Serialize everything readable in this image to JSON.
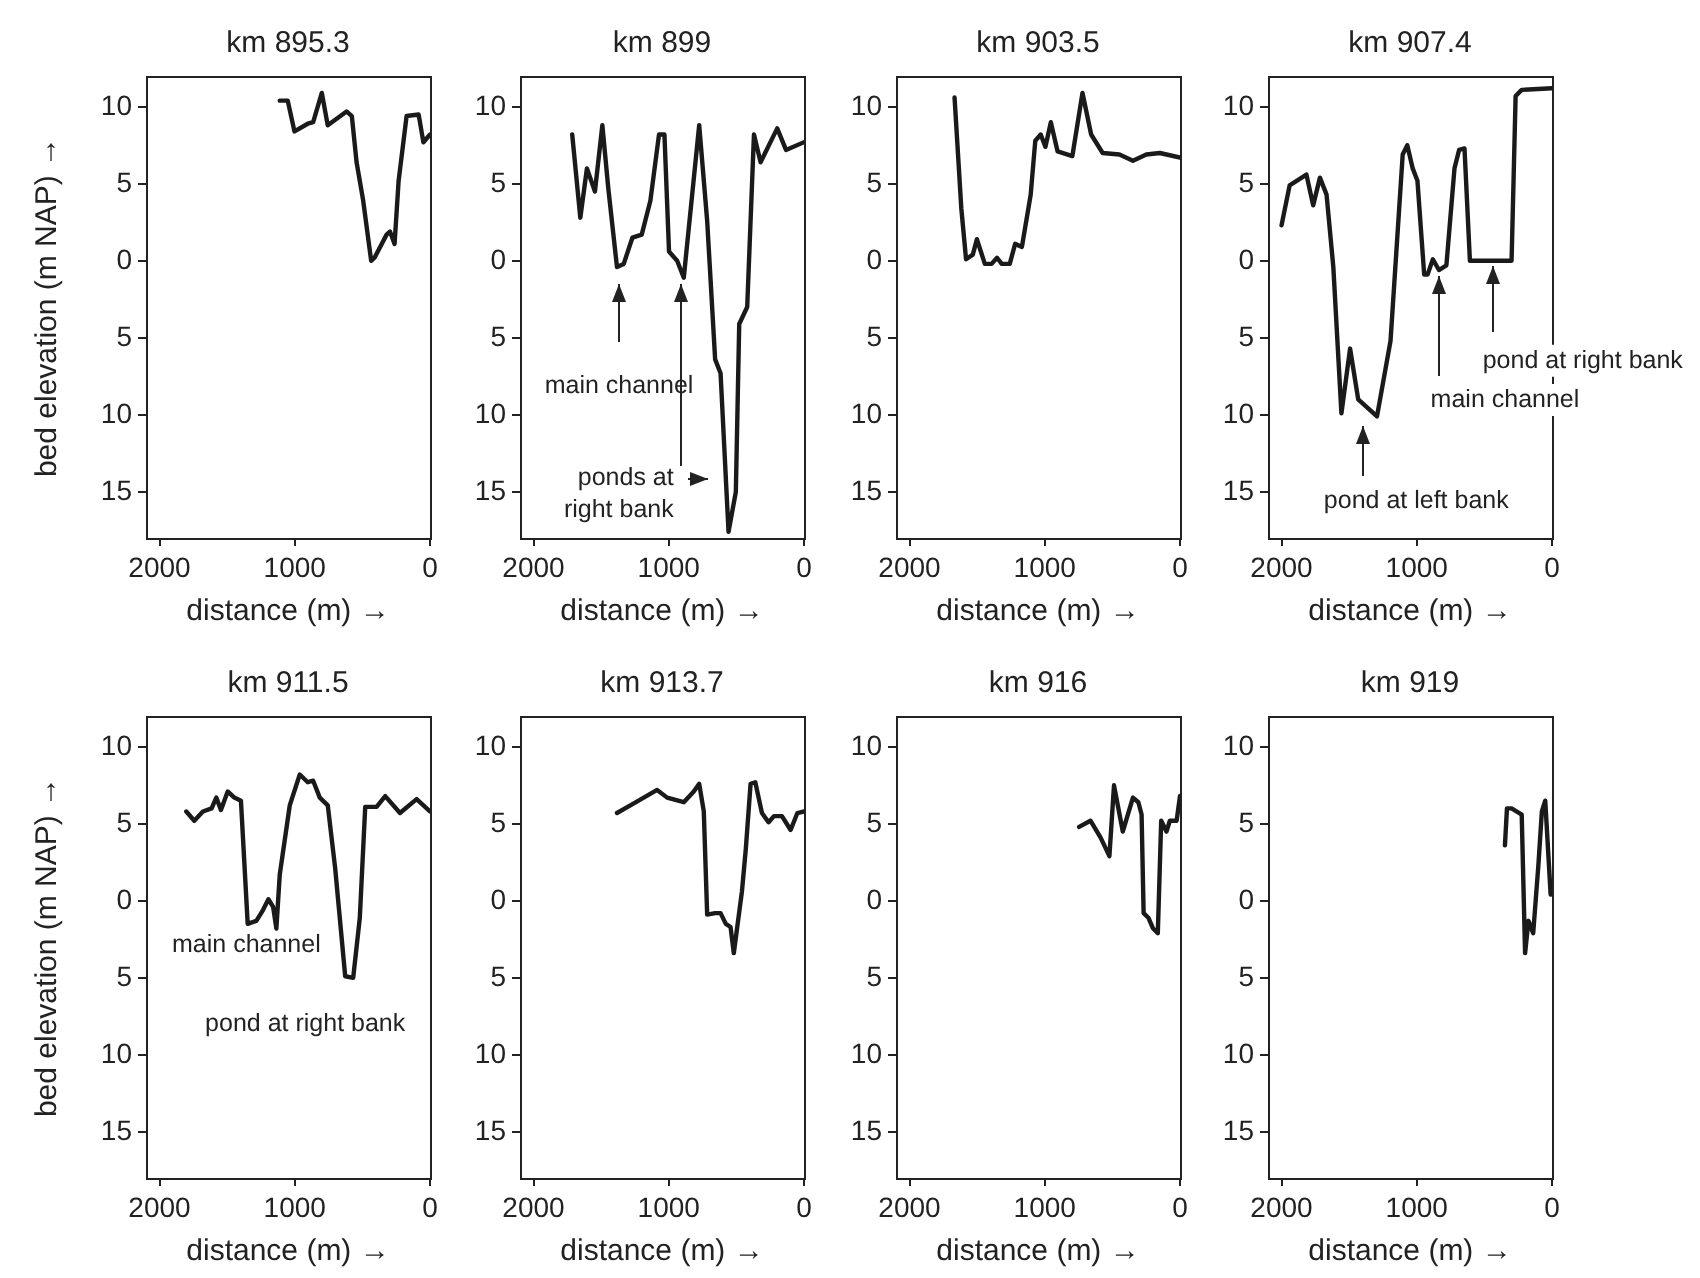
{
  "chart_data": [
    {
      "type": "line",
      "title": "km 895.3",
      "xlabel": "distance (m) →",
      "ylabel": "bed elevation (m NAP) →",
      "xlim": [
        2100,
        0
      ],
      "xticks": [
        2000,
        1000,
        0
      ],
      "ylim": [
        -18,
        12
      ],
      "yticks": [
        10,
        5,
        0,
        {
          "value": -5,
          "label": "5"
        },
        {
          "value": -10,
          "label": "10"
        },
        {
          "value": -15,
          "label": "15"
        }
      ],
      "grid": false,
      "legend": false,
      "marker": "none",
      "line_style": "solid",
      "color": "#1a1a1a",
      "x": [
        1111,
        1052,
        1002,
        904,
        864,
        800,
        756,
        617,
        578,
        543,
        494,
        435,
        410,
        321,
        296,
        262,
        232,
        173,
        84,
        49,
        0
      ],
      "values": [
        10.4,
        10.4,
        8.4,
        8.9,
        9.0,
        10.9,
        8.8,
        9.7,
        9.4,
        6.4,
        3.9,
        0,
        0.2,
        1.7,
        1.9,
        1.1,
        5.2,
        9.4,
        9.5,
        7.7,
        8.2
      ]
    },
    {
      "type": "line",
      "title": "km 899",
      "xlabel": "distance (m) →",
      "xlim": [
        2100,
        0
      ],
      "xticks": [
        2000,
        1000,
        0
      ],
      "ylim": [
        -18,
        12
      ],
      "yticks": [
        10,
        5,
        0,
        {
          "value": -5,
          "label": "5"
        },
        {
          "value": -10,
          "label": "10"
        },
        {
          "value": -15,
          "label": "15"
        }
      ],
      "grid": false,
      "legend": false,
      "marker": "none",
      "line_style": "solid",
      "color": "#1a1a1a",
      "x": [
        1714,
        1654,
        1605,
        1546,
        1491,
        1447,
        1383,
        1333,
        1269,
        1200,
        1136,
        1072,
        1032,
        998,
        938,
        889,
        775,
        716,
        657,
        617,
        558,
        504,
        479,
        420,
        370,
        321,
        198,
        133,
        0
      ],
      "values": [
        8.2,
        2.8,
        6.0,
        4.5,
        8.8,
        4.7,
        -0.4,
        -0.2,
        1.5,
        1.7,
        3.9,
        8.2,
        8.2,
        0.6,
        0,
        -1.1,
        8.8,
        2.6,
        -6.4,
        -7.3,
        -17.6,
        -15.0,
        -4.1,
        -3.0,
        8.2,
        6.4,
        8.6,
        7.2,
        7.7
      ],
      "annotations": [
        {
          "text": "main channel",
          "x": 1368,
          "y": -1.1
        },
        {
          "text": "ponds at right bank",
          "x": 904,
          "y": -1.1
        }
      ]
    },
    {
      "type": "line",
      "title": "km 903.5",
      "xlabel": "distance (m) →",
      "xlim": [
        2100,
        0
      ],
      "xticks": [
        2000,
        1000,
        0
      ],
      "ylim": [
        -18,
        12
      ],
      "yticks": [
        10,
        5,
        0,
        {
          "value": -5,
          "label": "5"
        },
        {
          "value": -10,
          "label": "10"
        },
        {
          "value": -15,
          "label": "15"
        }
      ],
      "grid": false,
      "legend": false,
      "marker": "none",
      "line_style": "solid",
      "color": "#1a1a1a",
      "x": [
        1667,
        1617,
        1582,
        1532,
        1502,
        1443,
        1393,
        1353,
        1318,
        1259,
        1219,
        1169,
        1104,
        1070,
        1030,
        995,
        955,
        905,
        796,
        721,
        657,
        572,
        448,
        348,
        249,
        149,
        0
      ],
      "values": [
        10.6,
        3.4,
        0.1,
        0.4,
        1.4,
        -0.2,
        -0.2,
        0.2,
        -0.2,
        -0.2,
        1.1,
        0.9,
        4.3,
        7.8,
        8.2,
        7.4,
        9.0,
        7.1,
        6.8,
        10.9,
        8.2,
        7.0,
        6.9,
        6.5,
        6.9,
        7.0,
        6.7
      ]
    },
    {
      "type": "line",
      "title": "km 907.4",
      "xlabel": "distance (m) →",
      "xlim": [
        2100,
        0
      ],
      "xticks": [
        2000,
        1000,
        0
      ],
      "ylim": [
        -18,
        12
      ],
      "yticks": [
        10,
        5,
        0,
        {
          "value": -5,
          "label": "5"
        },
        {
          "value": -10,
          "label": "10"
        },
        {
          "value": -15,
          "label": "15"
        }
      ],
      "grid": false,
      "legend": false,
      "marker": "none",
      "line_style": "solid",
      "color": "#1a1a1a",
      "x": [
        2000,
        1940,
        1816,
        1766,
        1716,
        1667,
        1617,
        1557,
        1493,
        1433,
        1294,
        1194,
        1104,
        1070,
        1030,
        995,
        945,
        920,
        881,
        836,
        781,
        721,
        687,
        647,
        607,
        299,
        269,
        224,
        0
      ],
      "values": [
        2.3,
        4.9,
        5.6,
        3.6,
        5.4,
        4.3,
        -0.4,
        -9.9,
        -5.7,
        -9.0,
        -10.1,
        -5.2,
        6.9,
        7.5,
        6.0,
        5.2,
        -0.9,
        -0.9,
        0.1,
        -0.6,
        -0.3,
        6.0,
        7.2,
        7.3,
        0,
        0,
        10.7,
        11.1,
        11.2
      ],
      "annotations": [
        {
          "text": "pond at left bank",
          "x": 1403,
          "y": -10.3
        },
        {
          "text": "main channel",
          "x": 836,
          "y": -0.6
        },
        {
          "text": "pond at right bank",
          "x": 438,
          "y": 0
        }
      ]
    },
    {
      "type": "line",
      "title": "km 911.5",
      "xlabel": "distance (m) →",
      "ylabel": "bed elevation (m NAP) →",
      "xlim": [
        2100,
        0
      ],
      "xticks": [
        2000,
        1000,
        0
      ],
      "ylim": [
        -18,
        12
      ],
      "yticks": [
        10,
        5,
        0,
        {
          "value": -5,
          "label": "5"
        },
        {
          "value": -10,
          "label": "10"
        },
        {
          "value": -15,
          "label": "15"
        }
      ],
      "grid": false,
      "legend": false,
      "marker": "none",
      "line_style": "solid",
      "color": "#1a1a1a",
      "x": [
        1802,
        1743,
        1679,
        1615,
        1580,
        1546,
        1496,
        1447,
        1398,
        1348,
        1284,
        1235,
        1195,
        1160,
        1136,
        1111,
        1037,
        963,
        904,
        864,
        815,
        756,
        701,
        627,
        568,
        519,
        479,
        395,
        331,
        222,
        99,
        0
      ],
      "values": [
        5.8,
        5.2,
        5.8,
        6.0,
        6.7,
        5.9,
        7.1,
        6.7,
        6.5,
        -1.5,
        -1.3,
        -0.6,
        0.1,
        -0.4,
        -1.8,
        1.7,
        6.2,
        8.2,
        7.7,
        7.8,
        6.7,
        6.2,
        2.1,
        -4.9,
        -5.0,
        -1.1,
        6.1,
        6.1,
        6.8,
        5.7,
        6.6,
        5.8
      ],
      "annotations": [
        {
          "text": "main channel",
          "x": 1284,
          "y": -1.3
        },
        {
          "text": "pond at right bank",
          "x": 568,
          "y": -5.0
        }
      ]
    },
    {
      "type": "line",
      "title": "km 913.7",
      "xlabel": "distance (m) →",
      "xlim": [
        2100,
        0
      ],
      "xticks": [
        2000,
        1000,
        0
      ],
      "ylim": [
        -18,
        12
      ],
      "yticks": [
        10,
        5,
        0,
        {
          "value": -5,
          "label": "5"
        },
        {
          "value": -10,
          "label": "10"
        },
        {
          "value": -15,
          "label": "15"
        }
      ],
      "grid": false,
      "legend": false,
      "marker": "none",
      "line_style": "solid",
      "color": "#1a1a1a",
      "x": [
        1383,
        1284,
        1185,
        1086,
        1012,
        889,
        815,
        775,
        741,
        716,
        657,
        617,
        578,
        543,
        519,
        459,
        430,
        395,
        360,
        311,
        262,
        222,
        163,
        99,
        49,
        0
      ],
      "values": [
        5.7,
        6.2,
        6.7,
        7.2,
        6.7,
        6.4,
        7.1,
        7.6,
        5.8,
        -0.9,
        -0.8,
        -0.8,
        -1.5,
        -1.7,
        -3.4,
        0.6,
        3.4,
        7.6,
        7.7,
        5.7,
        5.1,
        5.5,
        5.5,
        4.6,
        5.7,
        5.8
      ]
    },
    {
      "type": "line",
      "title": "km 916",
      "xlabel": "distance (m) →",
      "xlim": [
        2100,
        0
      ],
      "xticks": [
        2000,
        1000,
        0
      ],
      "ylim": [
        -18,
        12
      ],
      "yticks": [
        10,
        5,
        0,
        {
          "value": -5,
          "label": "5"
        },
        {
          "value": -10,
          "label": "10"
        },
        {
          "value": -15,
          "label": "15"
        }
      ],
      "grid": false,
      "legend": false,
      "marker": "none",
      "line_style": "solid",
      "color": "#1a1a1a",
      "x": [
        746,
        662,
        587,
        522,
        488,
        423,
        348,
        308,
        284,
        269,
        234,
        199,
        164,
        139,
        100,
        75,
        25,
        0
      ],
      "values": [
        4.8,
        5.2,
        4.1,
        2.9,
        7.5,
        4.5,
        6.7,
        6.4,
        5.6,
        -0.8,
        -1.1,
        -1.8,
        -2.1,
        5.2,
        4.5,
        5.2,
        5.2,
        6.8
      ]
    },
    {
      "type": "line",
      "title": "km 919",
      "xlabel": "distance (m) →",
      "xlim": [
        2100,
        0
      ],
      "xticks": [
        2000,
        1000,
        0
      ],
      "ylim": [
        -18,
        12
      ],
      "yticks": [
        10,
        5,
        0,
        {
          "value": -5,
          "label": "5"
        },
        {
          "value": -10,
          "label": "10"
        },
        {
          "value": -15,
          "label": "15"
        }
      ],
      "grid": false,
      "legend": false,
      "marker": "none",
      "line_style": "solid",
      "color": "#1a1a1a",
      "x": [
        348,
        333,
        299,
        224,
        199,
        174,
        139,
        100,
        75,
        50,
        10
      ],
      "values": [
        3.6,
        6.0,
        6.0,
        5.6,
        -3.4,
        -1.3,
        -2.1,
        2.4,
        5.8,
        6.5,
        0.4
      ]
    }
  ]
}
